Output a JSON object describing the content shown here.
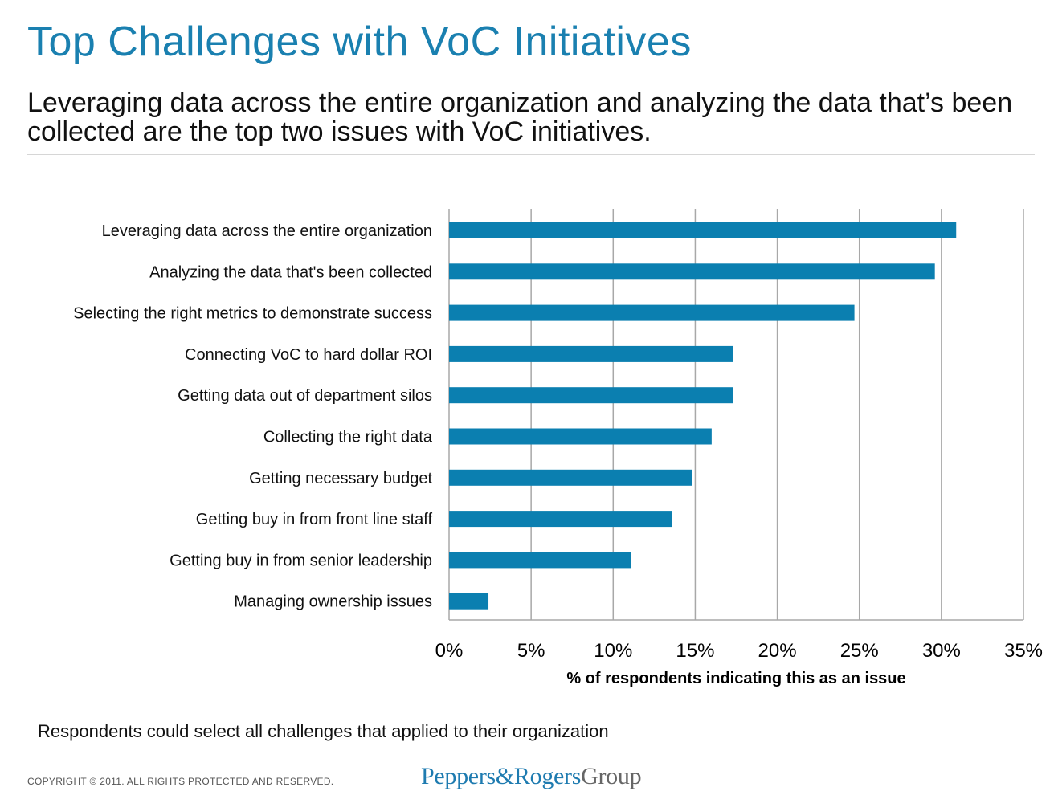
{
  "header": {
    "title": "Top Challenges with VoC Initiatives",
    "subtitle": "Leveraging data across the entire organization and analyzing the data that’s been collected are the top two issues with VoC initiatives."
  },
  "chart_data": {
    "type": "bar",
    "orientation": "horizontal",
    "categories": [
      "Leveraging data across the entire organization",
      "Analyzing the data that's been collected",
      "Selecting the right metrics to demonstrate success",
      "Connecting VoC to hard dollar ROI",
      "Getting data out of department silos",
      "Collecting the right data",
      "Getting necessary budget",
      "Getting buy in from front line staff",
      "Getting buy in from senior leadership",
      "Managing ownership issues"
    ],
    "values": [
      30.9,
      29.6,
      24.7,
      17.3,
      17.3,
      16.0,
      14.8,
      13.6,
      11.1,
      2.4
    ],
    "xlabel": "% of respondents indicating this as an issue",
    "ylabel": "",
    "xlim": [
      0,
      35
    ],
    "xticks": [
      "0%",
      "5%",
      "10%",
      "15%",
      "20%",
      "25%",
      "30%",
      "35%"
    ],
    "grid": "vertical",
    "bar_color": "#0b7fb0",
    "grid_color": "#a8a8a8"
  },
  "footnote": "Respondents could select all challenges that applied to their organization",
  "footer": {
    "copyright": "COPYRIGHT © 2011. ALL RIGHTS PROTECTED AND RESERVED.",
    "logo_part1": "Peppers",
    "logo_part2": "&Rogers",
    "logo_part3": "Group"
  }
}
